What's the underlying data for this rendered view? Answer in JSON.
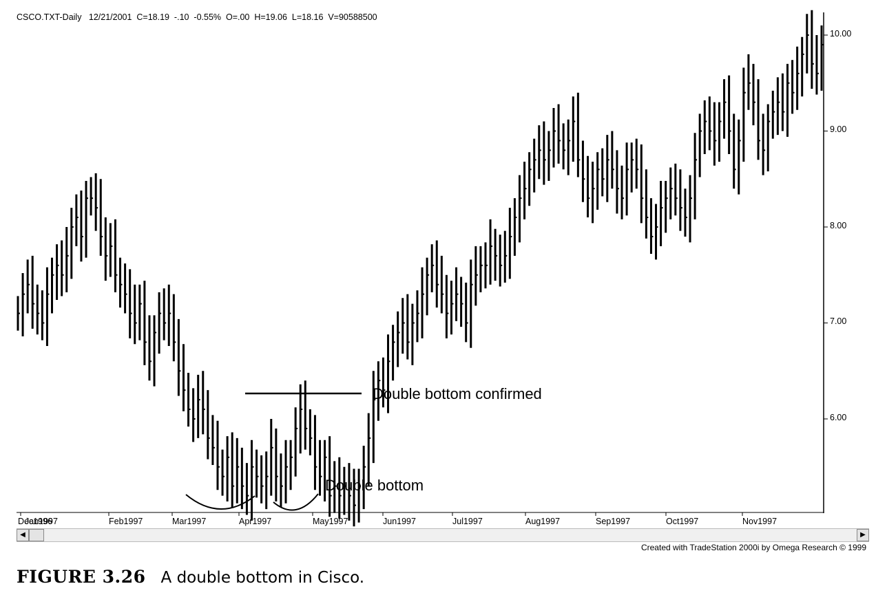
{
  "header": "CSCO.TXT-Daily   12/21/2001  C=18.19  -.10  -0.55%  O=.00  H=19.06  L=18.16  V=90588500",
  "credit": "Created with TradeStation 2000i by Omega Research © 1999",
  "caption": {
    "figure": "FIGURE 3.26",
    "text": "A double bottom in Cisco."
  },
  "icons": {
    "scroll_left": "left-arrow-icon",
    "scroll_right": "right-arrow-icon"
  },
  "chart_data": {
    "type": "ohlc-bar",
    "title": "",
    "ylim": [
      5.0,
      10.2
    ],
    "y_ticks": [
      "10.00",
      "9.00",
      "8.00",
      "7.00",
      "6.00"
    ],
    "x_tick_labels": [
      "Dec1996",
      "Jan1997",
      "Feb1997",
      "Mar1997",
      "Apr1997",
      "May1997",
      "Jun1997",
      "Jul1997",
      "Aug1997",
      "Sep1997",
      "Oct1997",
      "Nov1997"
    ],
    "close_approx": [
      7.1,
      7.3,
      7.4,
      7.2,
      7.1,
      7.0,
      7.3,
      7.5,
      7.6,
      7.5,
      7.7,
      8.0,
      8.1,
      7.9,
      8.3,
      8.3,
      8.2,
      7.9,
      7.7,
      7.8,
      7.5,
      7.4,
      7.3,
      7.1,
      7.0,
      7.2,
      6.8,
      6.6,
      6.9,
      7.1,
      7.0,
      7.1,
      6.8,
      6.5,
      6.3,
      6.1,
      6.0,
      6.2,
      6.1,
      5.8,
      5.7,
      5.5,
      5.4,
      5.6,
      5.3,
      5.5,
      5.3,
      5.2,
      5.5,
      5.4,
      5.3,
      5.4,
      5.7,
      5.4,
      5.3,
      5.5,
      5.6,
      5.9,
      6.1,
      5.9,
      5.8,
      5.5,
      5.4,
      5.6,
      5.2,
      5.3,
      5.2,
      5.3,
      5.2,
      5.1,
      5.3,
      5.5,
      5.8,
      6.2,
      6.4,
      6.3,
      6.6,
      6.8,
      6.9,
      7.0,
      6.8,
      7.0,
      7.1,
      7.3,
      7.5,
      7.6,
      7.4,
      7.3,
      7.1,
      7.2,
      7.3,
      7.2,
      7.0,
      7.4,
      7.5,
      7.6,
      7.6,
      7.8,
      7.7,
      7.6,
      7.7,
      7.9,
      8.1,
      8.3,
      8.4,
      8.6,
      8.7,
      8.8,
      8.7,
      8.8,
      9.0,
      8.9,
      8.8,
      8.9,
      9.1,
      8.7,
      8.5,
      8.3,
      8.4,
      8.6,
      8.5,
      8.7,
      8.6,
      8.4,
      8.3,
      8.6,
      8.7,
      8.6,
      8.3,
      8.1,
      7.9,
      8.0,
      8.2,
      8.3,
      8.4,
      8.3,
      8.2,
      8.1,
      8.3,
      8.7,
      9.0,
      9.1,
      9.0,
      8.9,
      9.1,
      9.3,
      9.0,
      8.6,
      8.9,
      9.4,
      9.5,
      9.3,
      8.9,
      8.8,
      9.1,
      9.2,
      9.3,
      9.2,
      9.5,
      9.4,
      9.6,
      9.8,
      10.0,
      9.7,
      9.6,
      9.9
    ]
  },
  "annotations": {
    "confirmed": "Double bottom confirmed",
    "double_bottom": "Double bottom"
  }
}
